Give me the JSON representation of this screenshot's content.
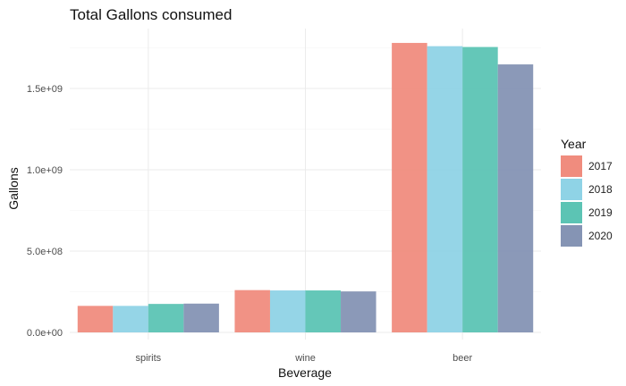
{
  "chart_data": {
    "type": "bar",
    "title": "Total Gallons consumed",
    "xlabel": "Beverage",
    "ylabel": "Gallons",
    "categories": [
      "spirits",
      "wine",
      "beer"
    ],
    "ylim": [
      0,
      1800000000
    ],
    "yticks": [
      0,
      500000000,
      1000000000,
      1500000000
    ],
    "ytick_labels": [
      "0.0e+00",
      "5.0e+08",
      "1.0e+09",
      "1.5e+09"
    ],
    "grid": true,
    "legend": {
      "title": "Year",
      "position": "right"
    },
    "series": [
      {
        "name": "2017",
        "color": "#f08c7e",
        "values": [
          163000000,
          260000000,
          1780000000
        ]
      },
      {
        "name": "2018",
        "color": "#8fd3e6",
        "values": [
          163000000,
          258000000,
          1760000000
        ]
      },
      {
        "name": "2019",
        "color": "#5cc4b4",
        "values": [
          175000000,
          258000000,
          1755000000
        ]
      },
      {
        "name": "2020",
        "color": "#8594b4",
        "values": [
          177000000,
          252000000,
          1648000000
        ]
      }
    ]
  }
}
